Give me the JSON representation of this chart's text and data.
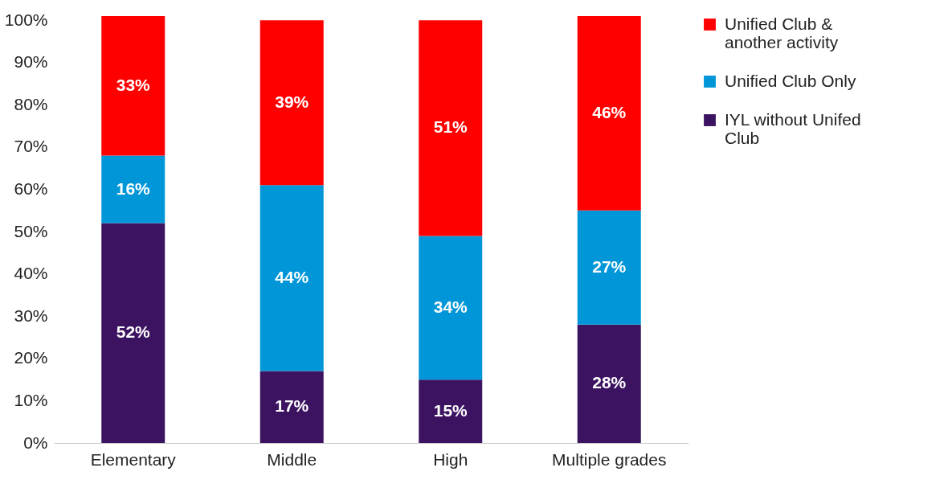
{
  "chart_data": {
    "type": "bar",
    "stacked": true,
    "categories": [
      "Elementary",
      "Middle",
      "High",
      "Multiple grades"
    ],
    "series": [
      {
        "name": "IYL without Unifed Club",
        "color": "#3c1361",
        "values": [
          52,
          17,
          15,
          28
        ],
        "value_labels": [
          "52%",
          "17%",
          "15%",
          "28%"
        ]
      },
      {
        "name": "Unified Club Only",
        "color": "#0096d8",
        "values": [
          16,
          44,
          34,
          27
        ],
        "value_labels": [
          "16%",
          "44%",
          "34%",
          "27%"
        ]
      },
      {
        "name": "Unified Club & another  activity",
        "color": "#ff0000",
        "values": [
          33,
          39,
          51,
          46
        ],
        "value_labels": [
          "33%",
          "39%",
          "51%",
          "46%"
        ]
      }
    ],
    "ylim": [
      0,
      101
    ],
    "yticks": [
      {
        "value": 0,
        "label": "0%"
      },
      {
        "value": 10,
        "label": "10%"
      },
      {
        "value": 20,
        "label": "20%"
      },
      {
        "value": 30,
        "label": "30%"
      },
      {
        "value": 40,
        "label": "40%"
      },
      {
        "value": 50,
        "label": "50%"
      },
      {
        "value": 60,
        "label": "60%"
      },
      {
        "value": 70,
        "label": "70%"
      },
      {
        "value": 80,
        "label": "80%"
      },
      {
        "value": 90,
        "label": "90%"
      },
      {
        "value": 100,
        "label": "100%"
      }
    ],
    "grid": false,
    "legend": "right"
  }
}
